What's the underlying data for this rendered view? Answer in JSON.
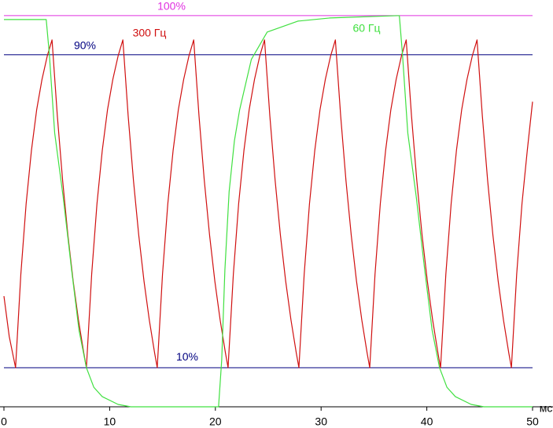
{
  "chart_data": {
    "type": "line",
    "xlabel": "мс",
    "xlim": [
      0,
      50
    ],
    "xticks": [
      0,
      10,
      20,
      30,
      40,
      50
    ],
    "ylim": [
      0,
      104
    ],
    "reference_lines": [
      {
        "value": 100,
        "label": "100%",
        "color": "#e030e0"
      },
      {
        "value": 90,
        "label": "90%",
        "color": "#000080"
      },
      {
        "value": 10,
        "label": "10%",
        "color": "#000080"
      }
    ],
    "series": [
      {
        "name": "300 Гц",
        "color": "#d01010",
        "x": [
          0,
          0.5,
          1.1,
          1.6,
          2.1,
          2.6,
          3.1,
          3.6,
          4.1,
          4.55,
          5.05,
          5.55,
          6.05,
          6.55,
          7.05,
          7.55,
          7.8,
          8.3,
          8.8,
          9.3,
          9.8,
          10.3,
          10.8,
          11.25,
          11.75,
          12.25,
          12.75,
          13.25,
          13.75,
          14.25,
          14.5,
          15.0,
          15.5,
          16.0,
          16.5,
          17.0,
          17.5,
          17.95,
          18.45,
          18.95,
          19.45,
          19.95,
          20.45,
          20.95,
          21.2,
          21.7,
          22.2,
          22.7,
          23.2,
          23.7,
          24.2,
          24.65,
          25.15,
          25.65,
          26.15,
          26.65,
          27.15,
          27.65,
          27.9,
          28.4,
          28.9,
          29.4,
          29.9,
          30.4,
          30.9,
          31.35,
          31.85,
          32.35,
          32.85,
          33.35,
          33.85,
          34.35,
          34.6,
          35.1,
          35.6,
          36.1,
          36.6,
          37.1,
          37.6,
          38.05,
          38.55,
          39.05,
          39.55,
          40.05,
          40.55,
          41.05,
          41.3,
          41.8,
          42.3,
          42.8,
          43.3,
          43.8,
          44.3,
          44.75,
          45.25,
          45.75,
          46.25,
          46.75,
          47.25,
          47.75,
          48.0,
          48.5,
          49.0,
          49.5,
          50
        ],
        "values": [
          28.3,
          18,
          10,
          33.9,
          51.9,
          65.5,
          76.0,
          83.7,
          89.7,
          93.8,
          74.4,
          57.9,
          43.9,
          32.1,
          22.2,
          13.8,
          10,
          33.9,
          51.9,
          65.5,
          76.0,
          83.7,
          89.7,
          93.8,
          74.4,
          57.9,
          43.9,
          32.1,
          22.2,
          13.8,
          10,
          33.9,
          51.9,
          65.5,
          76.0,
          83.7,
          89.7,
          93.8,
          74.4,
          57.9,
          43.9,
          32.1,
          22.2,
          13.8,
          10,
          33.9,
          51.9,
          65.5,
          76.0,
          83.7,
          89.7,
          93.8,
          74.4,
          57.9,
          43.9,
          32.1,
          22.2,
          13.8,
          10,
          33.9,
          51.9,
          65.5,
          76.0,
          83.7,
          89.7,
          93.8,
          74.4,
          57.9,
          43.9,
          32.1,
          22.2,
          13.8,
          10,
          33.9,
          51.9,
          65.5,
          76.0,
          83.7,
          89.7,
          93.8,
          74.4,
          57.9,
          43.9,
          32.1,
          22.2,
          13.8,
          10,
          33.9,
          51.9,
          65.5,
          76.0,
          83.7,
          89.7,
          93.8,
          74.4,
          57.9,
          43.9,
          32.1,
          22.2,
          13.8,
          10,
          33.9,
          51.9,
          65.5,
          78
        ]
      },
      {
        "name": "60 Гц",
        "color": "#40e040",
        "x": [
          0,
          4.0,
          4.3,
          4.8,
          5.6,
          6.4,
          7.1,
          7.8,
          8.5,
          9.3,
          10.8,
          12.0,
          20.3,
          20.6,
          20.9,
          21.3,
          21.8,
          22.3,
          23.4,
          24.9,
          27.8,
          30.8,
          37.2,
          37.4,
          37.7,
          38.2,
          39.0,
          39.8,
          40.5,
          41.2,
          41.9,
          42.7,
          44.2,
          45.4,
          50
        ],
        "values": [
          99,
          99,
          90,
          70,
          53.7,
          35,
          19.6,
          10,
          5,
          2.6,
          0.6,
          0,
          0,
          12,
          35,
          55,
          68,
          76,
          88.8,
          95.8,
          98.6,
          99.4,
          100,
          100,
          90,
          70,
          53.7,
          35,
          19.6,
          10,
          5,
          2.6,
          0.6,
          0,
          0
        ]
      }
    ]
  }
}
